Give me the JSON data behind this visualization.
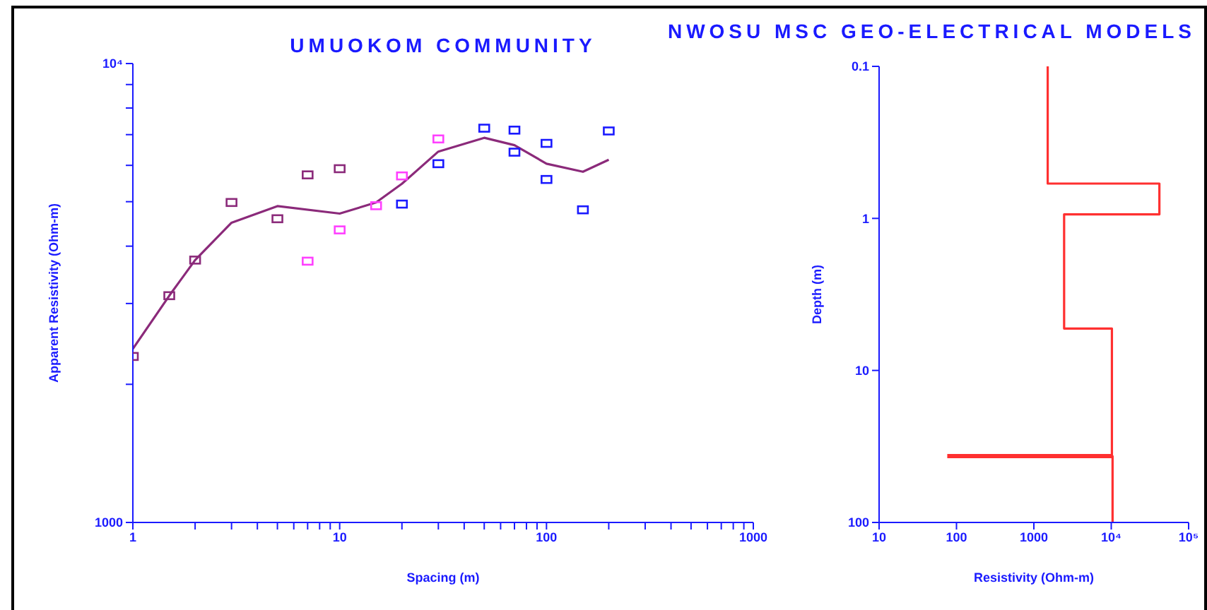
{
  "chart_data": [
    {
      "type": "scatter",
      "title": "UMUOKOM COMMUNITY",
      "xlabel": "Spacing (m)",
      "ylabel": "Apparent Resistivity (Ohm-m)",
      "log": "xy",
      "marker": "square",
      "xlim": [
        1,
        1000
      ],
      "ylim": [
        1000,
        10000
      ],
      "xticks": [
        1,
        {
          "value": 2,
          "label": null
        },
        {
          "value": 3,
          "label": null
        },
        {
          "value": 4,
          "label": null
        },
        {
          "value": 5,
          "label": null
        },
        {
          "value": 6,
          "label": null
        },
        {
          "value": 7,
          "label": null
        },
        {
          "value": 8,
          "label": null
        },
        {
          "value": 9,
          "label": null
        },
        10,
        {
          "value": 20,
          "label": null
        },
        {
          "value": 30,
          "label": null
        },
        {
          "value": 40,
          "label": null
        },
        {
          "value": 50,
          "label": null
        },
        {
          "value": 60,
          "label": null
        },
        {
          "value": 70,
          "label": null
        },
        {
          "value": 80,
          "label": null
        },
        {
          "value": 90,
          "label": null
        },
        100,
        {
          "value": 200,
          "label": null
        },
        {
          "value": 300,
          "label": null
        },
        {
          "value": 400,
          "label": null
        },
        {
          "value": 500,
          "label": null
        },
        {
          "value": 600,
          "label": null
        },
        {
          "value": 700,
          "label": null
        },
        {
          "value": 800,
          "label": null
        },
        {
          "value": 900,
          "label": null
        },
        1000
      ],
      "yticks": [
        1000,
        {
          "value": 2000,
          "label": null
        },
        {
          "value": 3000,
          "label": null
        },
        {
          "value": 4000,
          "label": null
        },
        {
          "value": 5000,
          "label": null
        },
        {
          "value": 6000,
          "label": null
        },
        {
          "value": 7000,
          "label": null
        },
        {
          "value": 8000,
          "label": null
        },
        {
          "value": 9000,
          "label": null
        },
        {
          "value": 10000,
          "label": "10⁴"
        }
      ],
      "series": [
        {
          "color": "#8b2a7a",
          "x": [
            1,
            1.5,
            2,
            3,
            5,
            7,
            10
          ],
          "values": [
            2300,
            3120,
            3730,
            4980,
            4590,
            5720,
            5900
          ]
        },
        {
          "color": "#ff40ff",
          "x": [
            7,
            10,
            15,
            20,
            30
          ],
          "values": [
            3710,
            4340,
            4900,
            5690,
            6850
          ]
        },
        {
          "color": "#1a1aff",
          "x": [
            20,
            30,
            50,
            70,
            70,
            100,
            100,
            150,
            200
          ],
          "values": [
            4940,
            6050,
            7230,
            7160,
            6410,
            6700,
            5590,
            4800,
            7130
          ]
        },
        {
          "type": "line",
          "marker": "none",
          "color": "#8b2a7a",
          "x": [
            1,
            1.5,
            2,
            3,
            5,
            10,
            15,
            20,
            30,
            50,
            70,
            100,
            150,
            200
          ],
          "values": [
            2390,
            3120,
            3730,
            4500,
            4890,
            4710,
            4980,
            5470,
            6430,
            6890,
            6640,
            6050,
            5810,
            6170
          ]
        }
      ]
    },
    {
      "type": "line",
      "title": "NWOSU MSC GEO-ELECTRICAL MODELS",
      "xlabel": "Resistivity (Ohm-m)",
      "ylabel": "Depth (m)",
      "log": "xy",
      "xlim": [
        10,
        100000
      ],
      "ylim": [
        100,
        0.1
      ],
      "xticks": [
        10,
        100,
        1000,
        {
          "value": 10000,
          "label": "10⁴"
        },
        {
          "value": 100000,
          "label": "10⁵"
        }
      ],
      "yticks": [
        0.1,
        1,
        10,
        100
      ],
      "series": [
        {
          "color": "#ff3030",
          "x": [
            1510,
            1510,
            41900,
            41900,
            2460,
            2460,
            10200,
            10200,
            10400,
            10400
          ],
          "values": [
            0.1,
            0.59,
            0.59,
            0.94,
            0.94,
            5.3,
            5.3,
            36.6,
            36.6,
            100
          ]
        },
        {
          "color": "#ff3030",
          "x": [
            76,
            10200
          ],
          "values": [
            36.6,
            36.6
          ]
        }
      ]
    }
  ]
}
